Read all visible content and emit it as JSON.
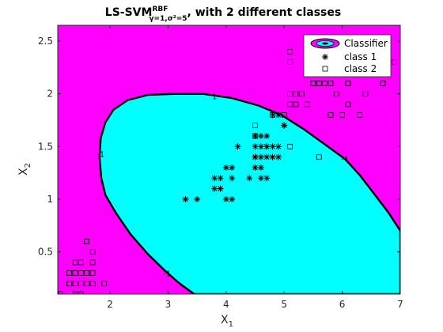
{
  "chart_data": {
    "type": "scatter",
    "title": {
      "main": "LS-SVM",
      "sup": "RBF",
      "sub": "γ=1,σ²=5",
      "suffix": ", with 2 different classes"
    },
    "xlabel": {
      "base": "X",
      "sub": "1"
    },
    "ylabel": {
      "base": "X",
      "sub": "2"
    },
    "xlim": [
      1.1,
      7
    ],
    "ylim": [
      0.1,
      2.65
    ],
    "xticks": [
      "2",
      "3",
      "4",
      "5",
      "6",
      "7"
    ],
    "yticks": [
      "0.5",
      "1",
      "1.5",
      "2",
      "2.5"
    ],
    "grid": false,
    "legend_position": "top-right",
    "legend": [
      "Classifier",
      "class 1",
      "class 2"
    ],
    "colors": {
      "class1_region": "#00ffff",
      "class2_region": "#ff00ff",
      "boundary": "#000000"
    },
    "boundary_labels": [
      "1",
      "-1",
      "-1",
      "-1"
    ],
    "decision_boundary": [
      [
        1.85,
        1.2
      ],
      [
        1.82,
        1.4
      ],
      [
        1.84,
        1.58
      ],
      [
        1.92,
        1.73
      ],
      [
        2.06,
        1.85
      ],
      [
        2.3,
        1.94
      ],
      [
        2.65,
        1.99
      ],
      [
        3.1,
        2.0
      ],
      [
        3.6,
        2.0
      ],
      [
        4.1,
        1.96
      ],
      [
        4.55,
        1.89
      ],
      [
        4.95,
        1.8
      ],
      [
        5.35,
        1.66
      ],
      [
        5.75,
        1.5
      ],
      [
        6.05,
        1.38
      ],
      [
        6.3,
        1.23
      ],
      [
        6.55,
        1.05
      ],
      [
        6.8,
        0.87
      ],
      [
        7.0,
        0.7
      ],
      [
        7.0,
        0.1
      ],
      [
        3.45,
        0.1
      ],
      [
        3.2,
        0.2
      ],
      [
        2.95,
        0.32
      ],
      [
        2.65,
        0.48
      ],
      [
        2.35,
        0.67
      ],
      [
        2.1,
        0.87
      ],
      [
        1.92,
        1.04
      ]
    ],
    "boundary_label_points": [
      [
        3.8,
        1.98
      ],
      [
        1.84,
        1.43
      ],
      [
        6.05,
        1.39
      ],
      [
        2.98,
        0.3
      ]
    ],
    "series": [
      {
        "name": "class 1",
        "marker": "asterisk",
        "x": [
          3.3,
          3.5,
          3.8,
          3.9,
          4.0,
          4.1,
          4.1,
          3.9,
          3.8,
          4.0,
          4.1,
          4.2,
          4.4,
          4.5,
          4.5,
          4.6,
          4.6,
          4.7,
          4.7,
          4.8,
          4.8,
          4.9,
          4.9,
          5.0,
          5.0,
          4.5,
          4.6,
          4.5,
          4.6,
          4.7,
          4.8,
          4.9,
          4.6,
          4.7,
          4.5,
          4.7
        ],
        "y": [
          1.0,
          1.0,
          1.1,
          1.1,
          1.0,
          1.0,
          1.3,
          1.2,
          1.2,
          1.3,
          1.2,
          1.5,
          1.2,
          1.3,
          1.4,
          1.4,
          1.3,
          1.4,
          1.5,
          1.4,
          1.5,
          1.4,
          1.5,
          1.7,
          1.7,
          1.5,
          1.5,
          1.6,
          1.6,
          1.6,
          1.8,
          1.8,
          1.2,
          1.2,
          1.4,
          1.5
        ]
      },
      {
        "name": "class 2",
        "marker": "square",
        "x": [
          1.15,
          1.3,
          1.3,
          1.3,
          1.4,
          1.4,
          1.4,
          1.4,
          1.5,
          1.5,
          1.5,
          1.5,
          1.5,
          1.6,
          1.6,
          1.6,
          1.7,
          1.7,
          1.7,
          1.7,
          1.7,
          1.9,
          1.4,
          1.5,
          4.5,
          4.5,
          4.8,
          5.0,
          5.1,
          5.1,
          5.1,
          5.1,
          5.1,
          5.2,
          5.2,
          5.3,
          5.4,
          5.5,
          5.6,
          5.6,
          5.7,
          5.8,
          5.8,
          5.9,
          6.0,
          6.1,
          6.1,
          6.3,
          6.4,
          6.7,
          6.9,
          5.1
        ],
        "y": [
          0.1,
          0.2,
          0.3,
          0.2,
          0.2,
          0.3,
          0.4,
          0.1,
          0.2,
          0.3,
          0.4,
          0.1,
          0.1,
          0.2,
          0.3,
          0.6,
          0.2,
          0.3,
          0.4,
          0.5,
          0.2,
          0.2,
          0.1,
          0.1,
          1.7,
          1.6,
          1.8,
          1.8,
          1.9,
          2.0,
          2.0,
          2.3,
          2.4,
          1.9,
          2.0,
          2.0,
          1.9,
          2.1,
          1.4,
          2.1,
          2.1,
          1.8,
          2.1,
          2.0,
          1.8,
          2.1,
          1.9,
          1.8,
          2.0,
          2.1,
          2.3,
          1.5
        ]
      }
    ]
  }
}
